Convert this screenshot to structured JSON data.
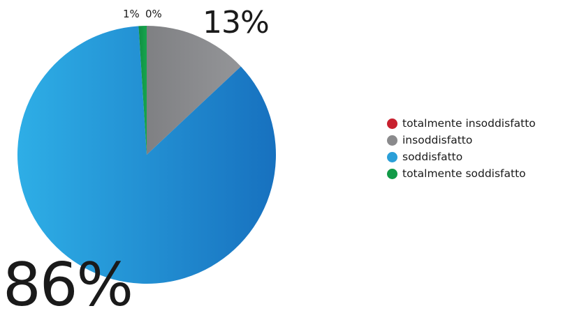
{
  "chart_data": {
    "type": "pie",
    "categories": [
      "totalmente insoddisfatto",
      "insoddisfatto",
      "soddisfatto",
      "totalmente soddisfatto"
    ],
    "values": [
      0,
      13,
      86,
      1
    ],
    "data_labels": [
      "0%",
      "13%",
      "86%",
      "1%"
    ],
    "colors": [
      "#c8202e",
      "#8a8a8c",
      "#2a9fd8",
      "#129a48"
    ],
    "legend_position": "right",
    "title": ""
  },
  "legend": {
    "items": [
      {
        "label": "totalmente insoddisfatto",
        "color": "#c8202e"
      },
      {
        "label": "insoddisfatto",
        "color": "#8a8a8c"
      },
      {
        "label": "soddisfatto",
        "color": "#2a9fd8"
      },
      {
        "label": "totalmente soddisfatto",
        "color": "#129a48"
      }
    ]
  },
  "labels": {
    "soddisfatto": "86%",
    "insoddisfatto": "13%",
    "totalmente_soddisfatto": "1%",
    "totalmente_insoddisfatto": "0%"
  }
}
